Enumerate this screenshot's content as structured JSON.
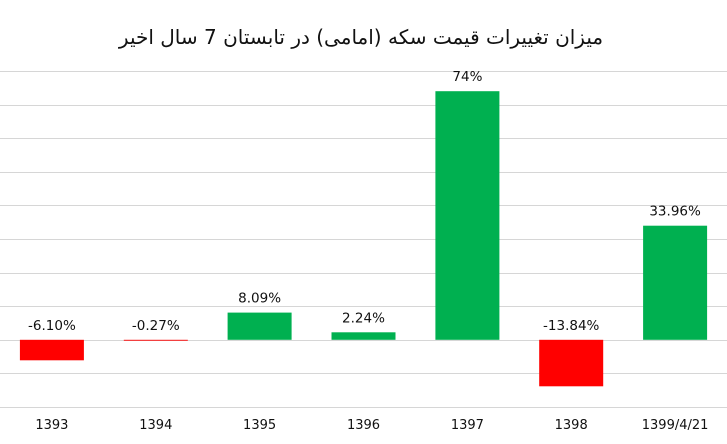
{
  "chart_data": {
    "type": "bar",
    "title": "میزان تغییرات قیمت سکه (امامی) در تابستان 7 سال اخیر",
    "categories": [
      "1393",
      "1394",
      "1395",
      "1396",
      "1397",
      "1398",
      "1399/4/21"
    ],
    "values": [
      -6.1,
      -0.27,
      8.09,
      2.24,
      74,
      -13.84,
      33.96
    ],
    "data_labels": [
      "-6.10%",
      "-0.27%",
      "8.09%",
      "2.24%",
      "74%",
      "-13.84%",
      "33.96%"
    ],
    "ylim": [
      -20,
      80
    ],
    "grid": true,
    "legend": "none",
    "colors": {
      "positive": "#00b050",
      "negative": "#ff0000",
      "grid": "#d6d6d6",
      "text": "#111111",
      "background": "#ffffff"
    }
  }
}
